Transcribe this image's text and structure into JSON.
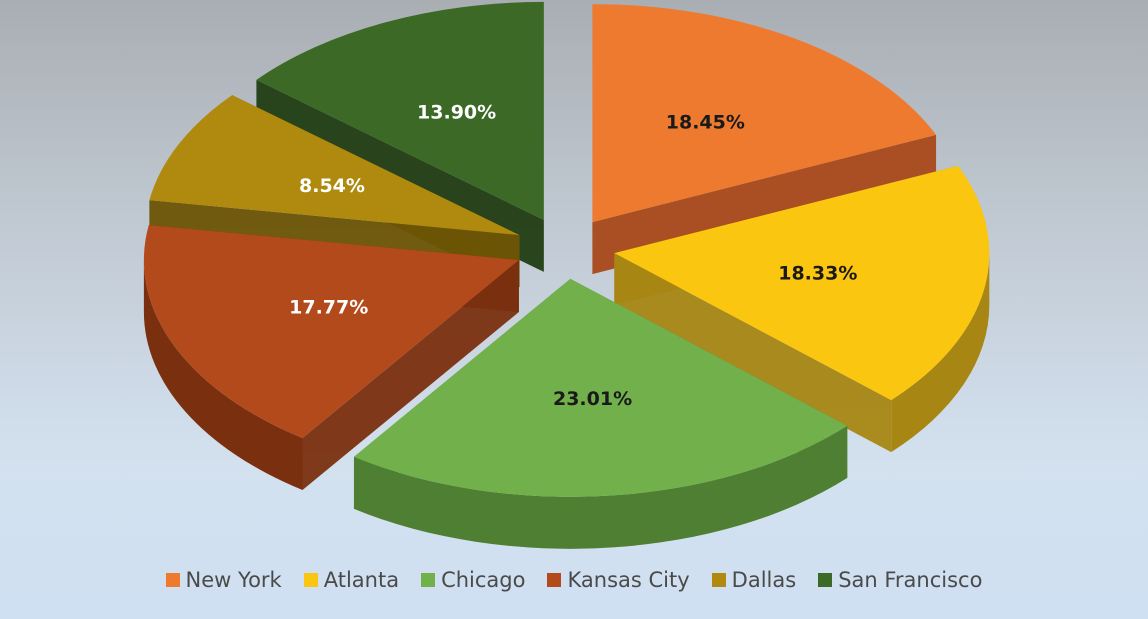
{
  "colors": {
    "label_dark": "#1a1a1a",
    "label_light": "#ffffff"
  },
  "chart_data": {
    "type": "pie",
    "style": "3d-exploded",
    "legend_position": "bottom",
    "slices": [
      {
        "name": "New York",
        "value": 18.45,
        "label": "18.45%",
        "color": "#ee7a30",
        "side": "#a9481a",
        "label_color": "dark"
      },
      {
        "name": "Atlanta",
        "value": 18.33,
        "label": "18.33%",
        "color": "#fbc60f",
        "side": "#a78613",
        "label_color": "dark"
      },
      {
        "name": "Chicago",
        "value": 23.01,
        "label": "23.01%",
        "color": "#72b04c",
        "side": "#4f7f33",
        "label_color": "dark"
      },
      {
        "name": "Kansas City",
        "value": 17.77,
        "label": "17.77%",
        "color": "#b34a1c",
        "side": "#7a2f0f",
        "label_color": "light"
      },
      {
        "name": "Dallas",
        "value": 8.54,
        "label": "8.54%",
        "color": "#b08a0f",
        "side": "#6b5405",
        "label_color": "light"
      },
      {
        "name": "San Francisco",
        "value": 13.9,
        "label": "13.90%",
        "color": "#3c6a26",
        "side": "#213d13",
        "label_color": "light"
      }
    ]
  }
}
